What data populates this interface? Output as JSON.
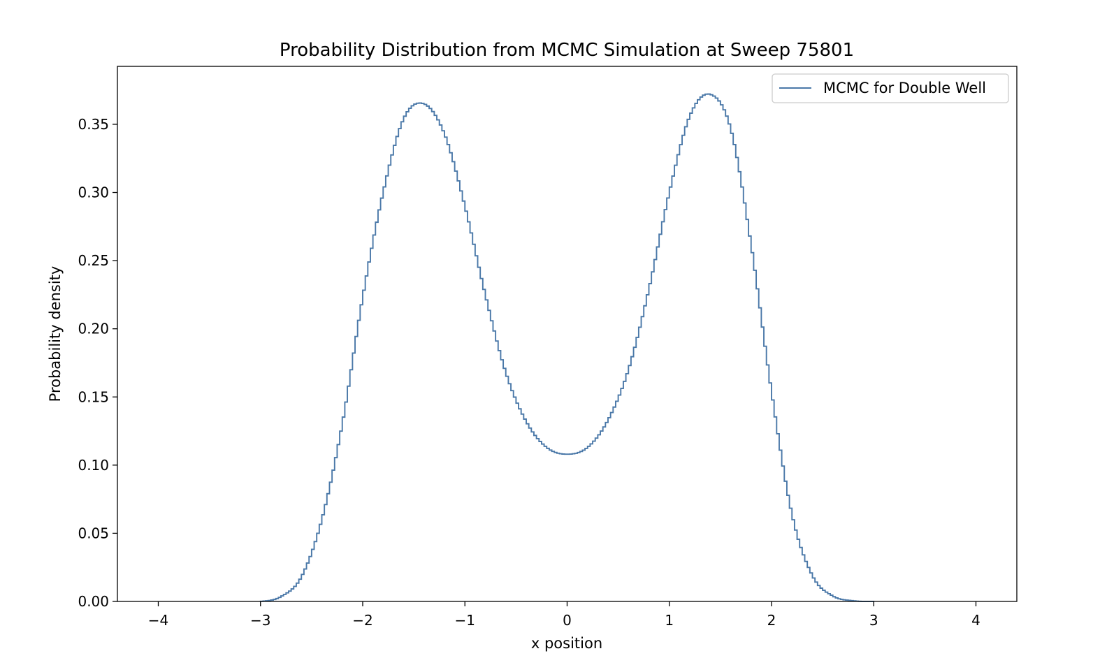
{
  "chart_data": {
    "type": "line",
    "style": "step-histogram",
    "title": "Probability Distribution from MCMC Simulation at Sweep 75801",
    "xlabel": "x position",
    "ylabel": "Probability density",
    "xlim": [
      -4.4,
      4.4
    ],
    "ylim": [
      0.0,
      0.3925
    ],
    "grid": false,
    "legend": {
      "location": "upper-right",
      "entries": [
        "MCMC for Double Well"
      ]
    },
    "x_ticks": [
      -4,
      -3,
      -2,
      -1,
      0,
      1,
      2,
      3,
      4
    ],
    "x_tick_labels": [
      "−4",
      "−3",
      "−2",
      "−1",
      "0",
      "1",
      "2",
      "3",
      "4"
    ],
    "y_ticks": [
      0.0,
      0.05,
      0.1,
      0.15,
      0.2,
      0.25,
      0.3,
      0.35
    ],
    "y_tick_labels": [
      "0.00",
      "0.05",
      "0.10",
      "0.15",
      "0.20",
      "0.25",
      "0.30",
      "0.35"
    ],
    "series": [
      {
        "name": "MCMC for Double Well",
        "color": "#4a78a8",
        "bins": {
          "start": -3.0,
          "end": 3.0,
          "count": 240
        },
        "x": [
          -3.0,
          -2.8,
          -2.6,
          -2.4,
          -2.2,
          -2.0,
          -1.8,
          -1.6,
          -1.4,
          -1.2,
          -1.0,
          -0.8,
          -0.6,
          -0.4,
          -0.2,
          0.0,
          0.2,
          0.4,
          0.6,
          0.8,
          1.0,
          1.2,
          1.4,
          1.6,
          1.8,
          2.0,
          2.2,
          2.4,
          2.6,
          2.8,
          3.0
        ],
        "values": [
          0.0,
          0.0035,
          0.018,
          0.06,
          0.13,
          0.223,
          0.3,
          0.354,
          0.365,
          0.343,
          0.29,
          0.225,
          0.168,
          0.132,
          0.113,
          0.108,
          0.113,
          0.133,
          0.17,
          0.229,
          0.3,
          0.356,
          0.372,
          0.347,
          0.262,
          0.154,
          0.064,
          0.019,
          0.004,
          0.0005,
          0.0
        ]
      }
    ]
  }
}
